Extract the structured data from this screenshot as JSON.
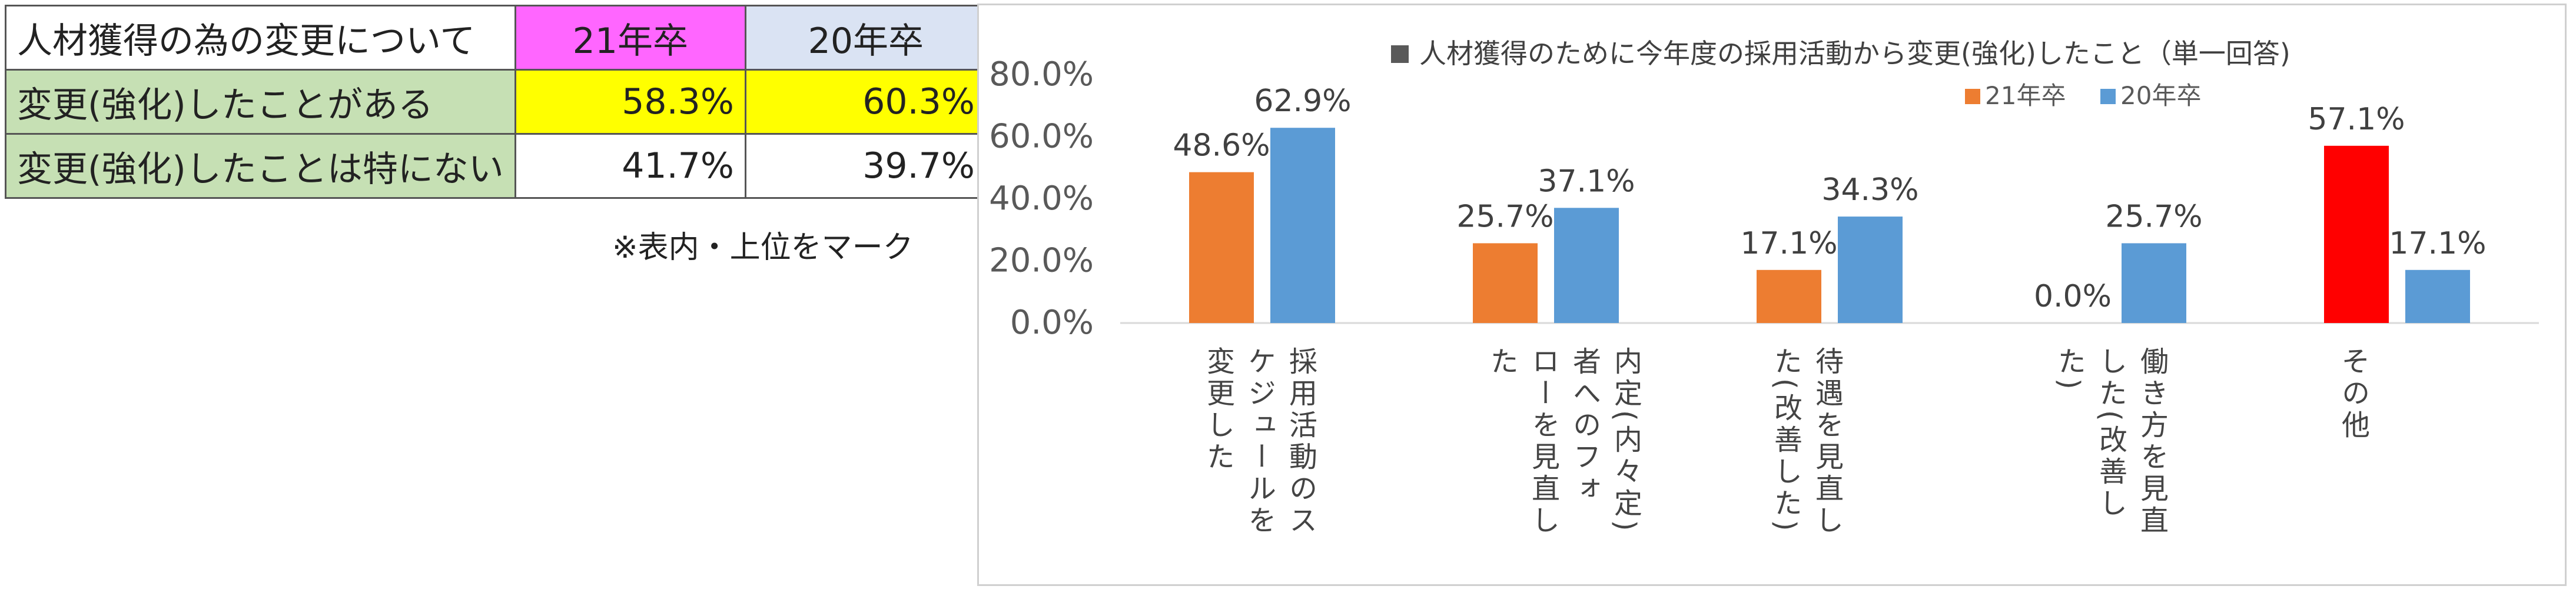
{
  "table": {
    "header": {
      "label": "人材獲得の為の変更について",
      "col_a": "21年卒",
      "col_b": "20年卒"
    },
    "rows": [
      {
        "label": "変更(強化)したことがある",
        "a": "58.3%",
        "b": "60.3%"
      },
      {
        "label": "変更(強化)したことは特にない",
        "a": "41.7%",
        "b": "39.7%"
      }
    ],
    "note": "※表内・上位をマーク"
  },
  "chart_data": {
    "type": "bar",
    "title": "人材獲得のために今年度の採用活動から変更(強化)したこと（単一回答)",
    "categories": [
      "採用活動のス\nケジュールを\n変更した",
      "内定(内々定)\n者へのフォ\nローを見直し\nた",
      "待遇を見直し\nた(改善した)",
      "働き方を見直\nした(改善し\nた)",
      "その他"
    ],
    "series": [
      {
        "name": "21年卒",
        "color": "#ed7d31",
        "values": [
          48.6,
          25.7,
          17.1,
          0.0,
          57.1
        ]
      },
      {
        "name": "20年卒",
        "color": "#5b9bd5",
        "values": [
          62.9,
          37.1,
          34.3,
          25.7,
          17.1
        ]
      }
    ],
    "highlight": {
      "category_index": 4,
      "series_index": 0,
      "color": "#ff0000"
    },
    "y_ticks": [
      "0.0%",
      "20.0%",
      "40.0%",
      "60.0%",
      "80.0%"
    ],
    "ylim": [
      0,
      80
    ],
    "legend_position": "top-right",
    "grid": false
  }
}
